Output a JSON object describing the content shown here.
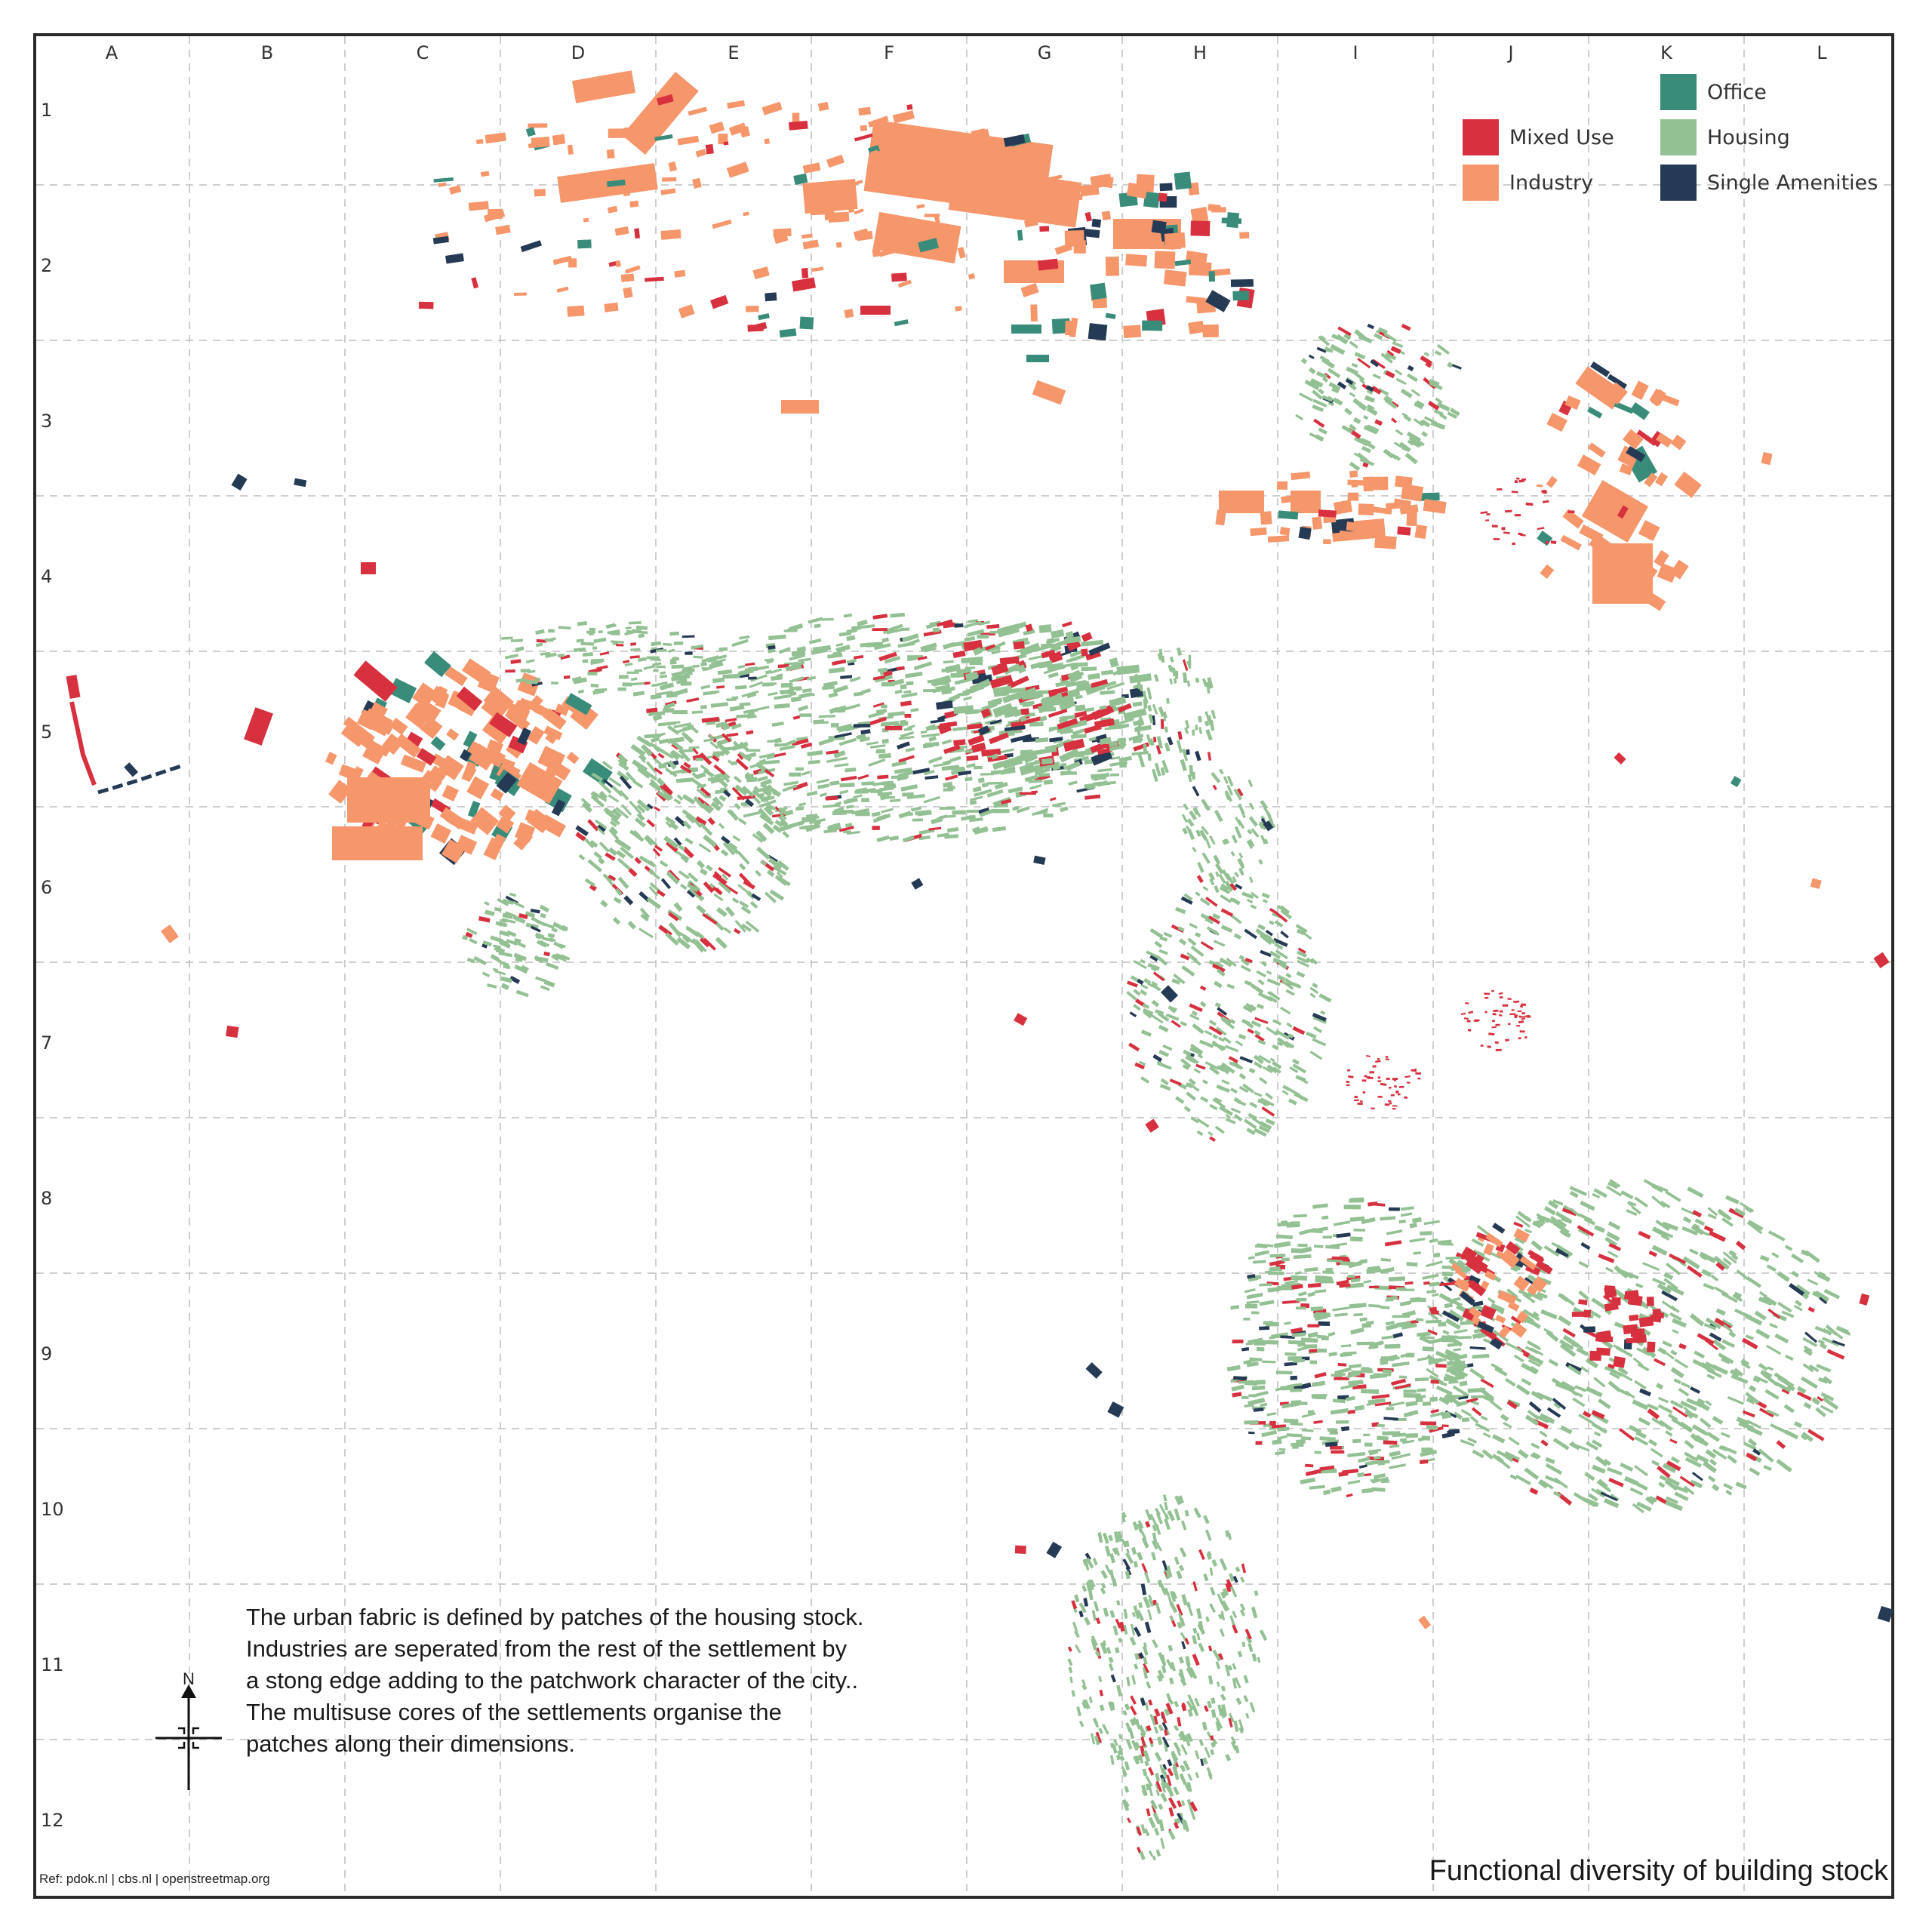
{
  "map": {
    "title": "Functional diversity of building stock",
    "reference": "Ref: pdok.nl | cbs.nl | openstreetmap.org",
    "description": "The urban fabric is defined by  patches of the housing stock. Industries are seperated from the rest of the settlement by a stong edge adding to the patchwork character of the city.. The multisuse cores of the settlements organise the patches along their dimensions.",
    "north_label": "N"
  },
  "grid": {
    "columns": [
      "A",
      "B",
      "C",
      "D",
      "E",
      "F",
      "G",
      "H",
      "I",
      "J",
      "K",
      "L"
    ],
    "rows": [
      "1",
      "2",
      "3",
      "4",
      "5",
      "6",
      "7",
      "8",
      "9",
      "10",
      "11",
      "12"
    ]
  },
  "legend": {
    "items": [
      {
        "label": "Mixed Use",
        "color": "#d7303f"
      },
      {
        "label": "Industry",
        "color": "#f5966b"
      },
      {
        "label": "Office",
        "color": "#3a8c7a"
      },
      {
        "label": "Housing",
        "color": "#93c193"
      },
      {
        "label": "Single Amenities",
        "color": "#253a54"
      }
    ]
  },
  "colors": {
    "mixed_use": "#d7303f",
    "industry": "#f5966b",
    "office": "#3a8c7a",
    "housing": "#93c193",
    "amenities": "#253a54",
    "grid_line": "#bdbdbd",
    "frame": "#2a2a2a"
  }
}
